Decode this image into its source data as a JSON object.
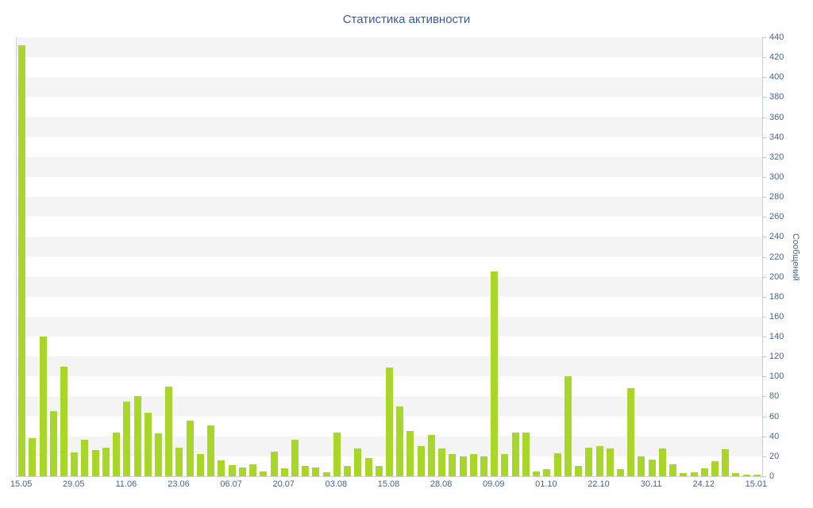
{
  "chart": {
    "title": "Статистика активности",
    "y_axis_title": "Сообщений",
    "colors": {
      "bar": "#a8d629",
      "title_text": "#3c5a9b",
      "axis_label_text": "#4a6486",
      "alt_band": "#f4f4f4",
      "axis_line": "#d0d0d8"
    }
  },
  "chart_data": {
    "type": "bar",
    "title": "Статистика активности",
    "xlabel": "",
    "ylabel": "Сообщений",
    "ylim": [
      0,
      440
    ],
    "y_tick_step": 20,
    "grid": "alternating-horizontal-bands",
    "legend": "none",
    "x_tick_labels": [
      "15.05",
      "29.05",
      "11.06",
      "23.06",
      "06.07",
      "20.07",
      "03.08",
      "15.08",
      "28.08",
      "09.09",
      "01.10",
      "22.10",
      "30.11",
      "24.12",
      "15.01"
    ],
    "x_tick_every": 5,
    "values": [
      432,
      38,
      140,
      65,
      110,
      24,
      37,
      26,
      29,
      44,
      75,
      80,
      64,
      43,
      90,
      29,
      56,
      22,
      51,
      16,
      11,
      9,
      12,
      5,
      25,
      8,
      37,
      10,
      9,
      4,
      44,
      10,
      28,
      18,
      10,
      109,
      70,
      45,
      30,
      41,
      28,
      22,
      20,
      22,
      20,
      205,
      22,
      44,
      44,
      5,
      7,
      23,
      100,
      10,
      29,
      30,
      28,
      7,
      88,
      20,
      17,
      28,
      12,
      3,
      4,
      8,
      15,
      27,
      3,
      2,
      2
    ]
  }
}
